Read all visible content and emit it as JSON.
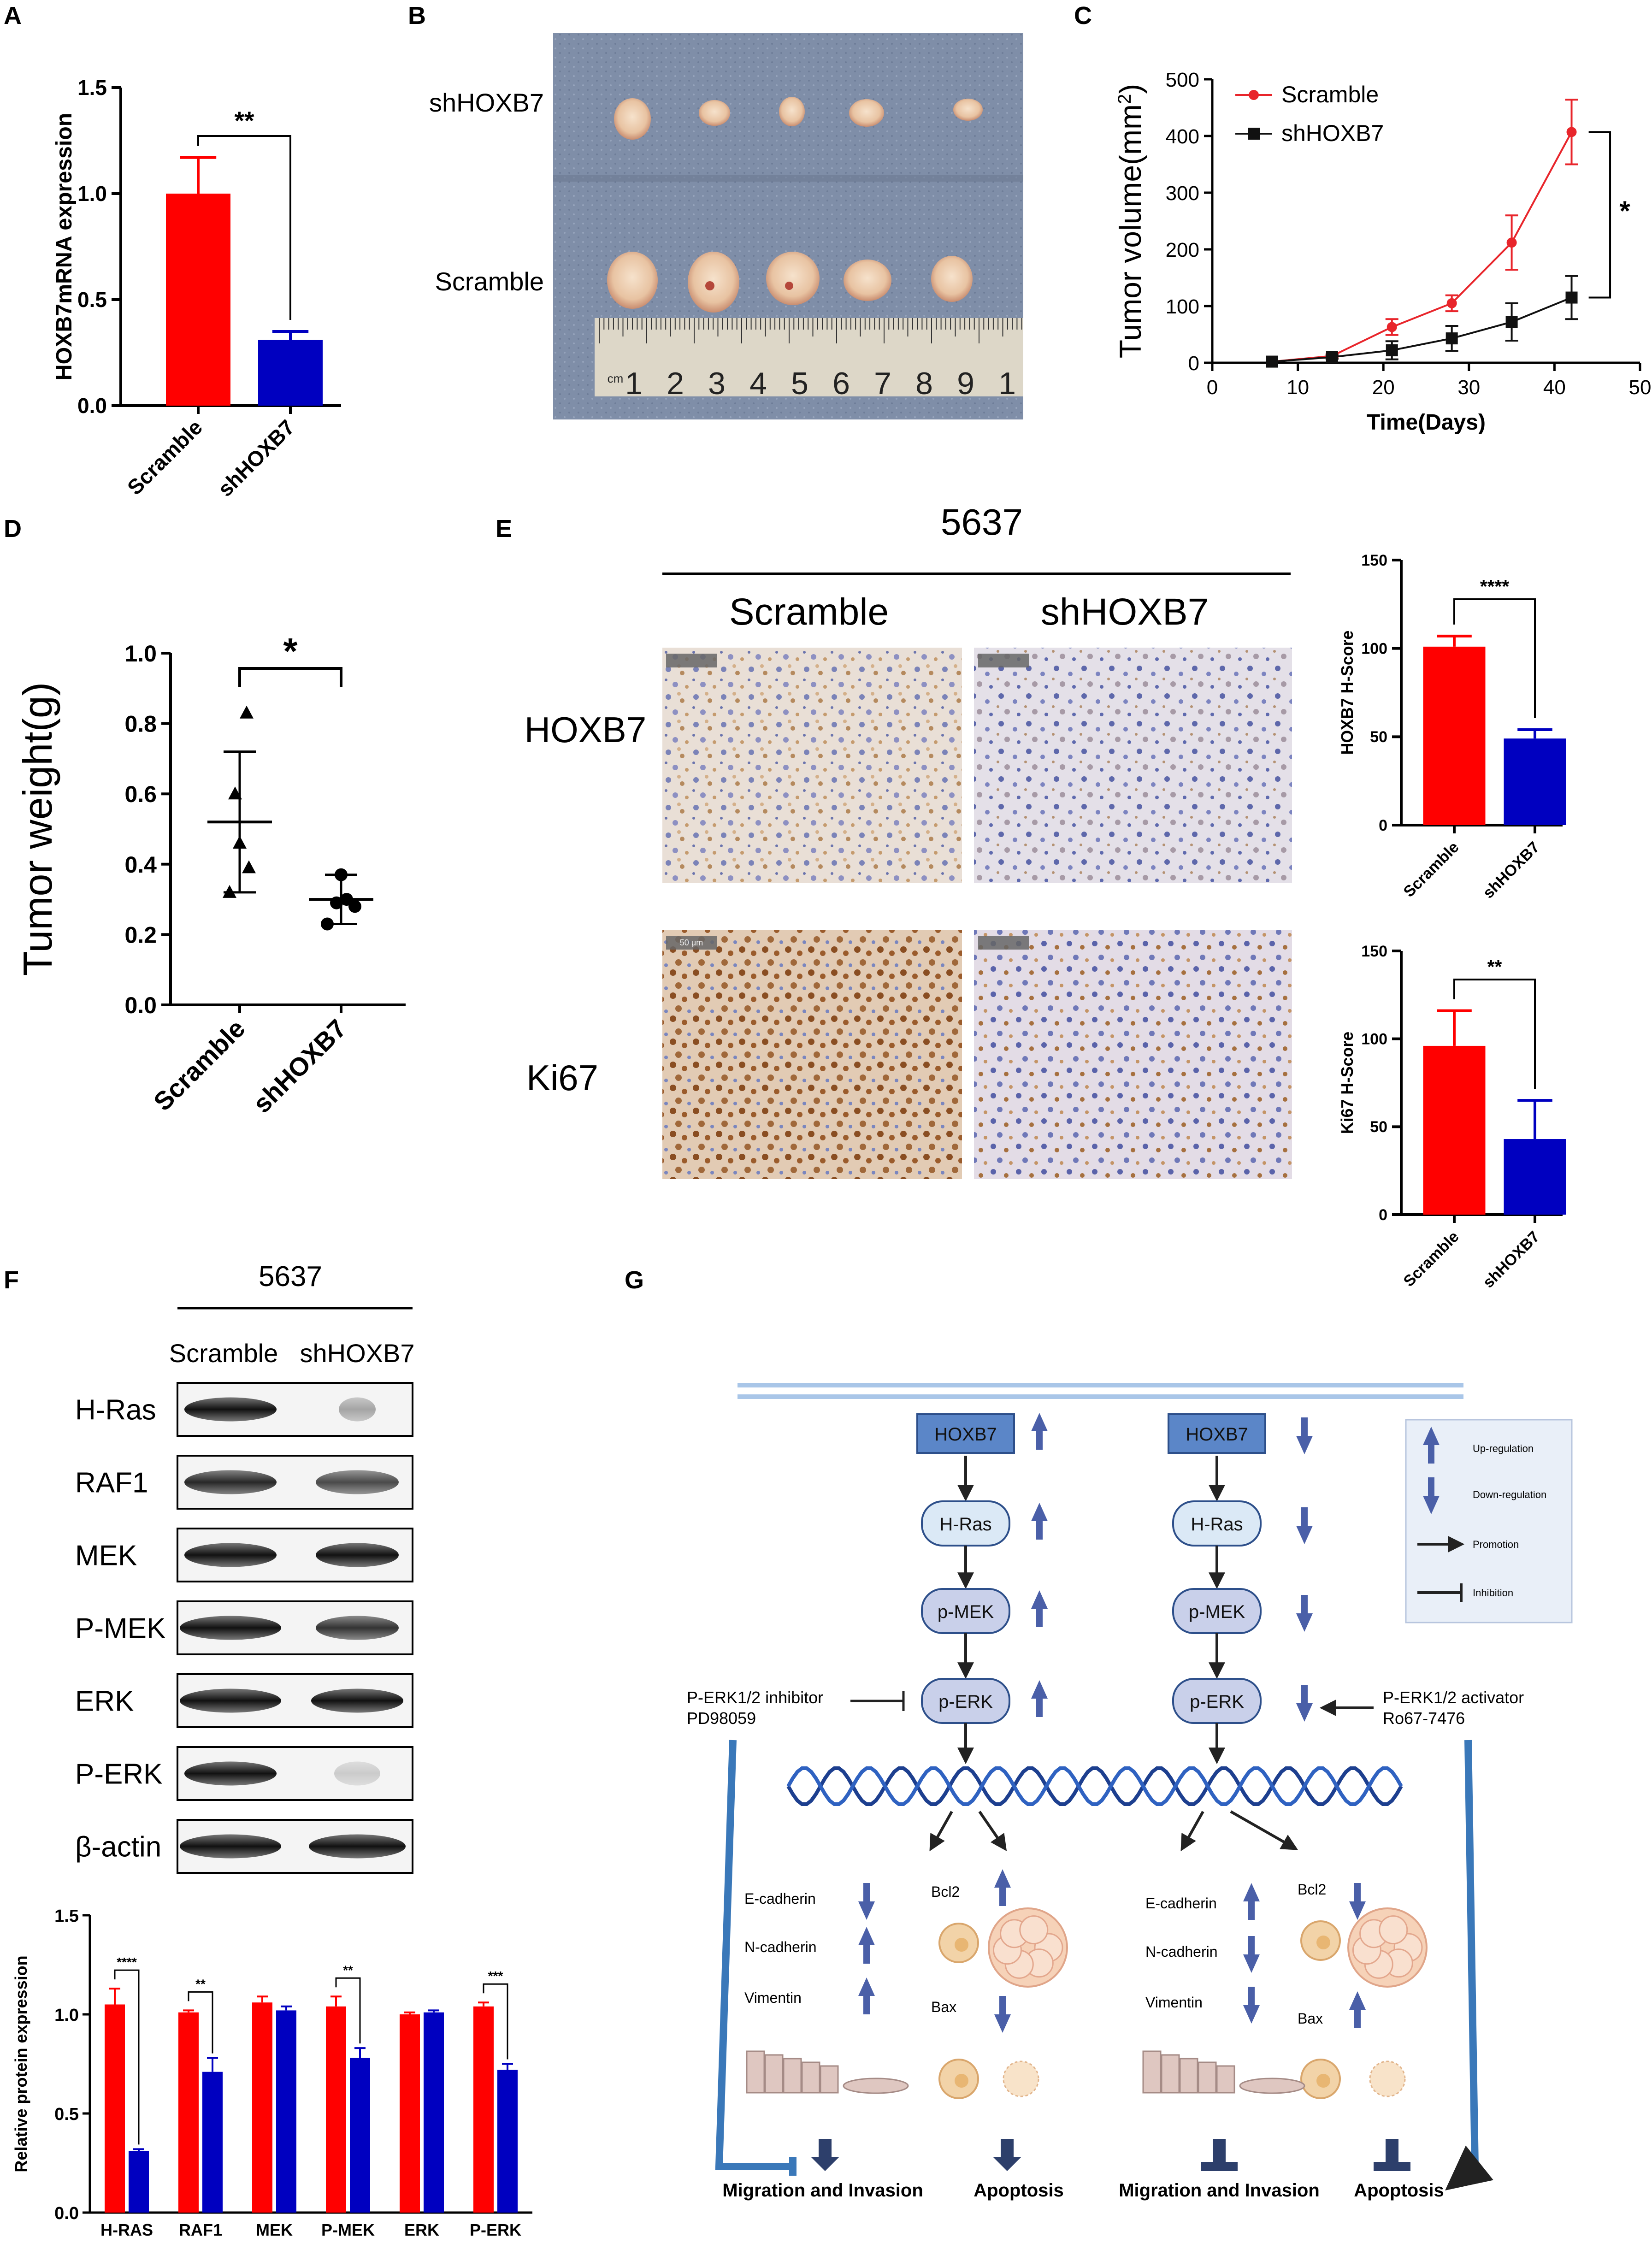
{
  "panels": {
    "A": "A",
    "B": "B",
    "C": "C",
    "D": "D",
    "E": "E",
    "F": "F",
    "G": "G"
  },
  "colors": {
    "scramble": "#ff0000",
    "shHOXB7": "#0000c0",
    "line_red": "#e8252b",
    "line_black": "#111111"
  },
  "chart_data": [
    {
      "id": "A",
      "type": "bar",
      "ylabel": "HOXB7mRNA expression",
      "ylim": [
        0,
        1.5
      ],
      "yticks": [
        "0.0",
        "0.5",
        "1.0",
        "1.5"
      ],
      "categories": [
        "Scramble",
        "shHOXB7"
      ],
      "values": [
        1.0,
        0.31
      ],
      "errors": [
        0.17,
        0.04
      ],
      "significance": "**"
    },
    {
      "id": "C",
      "type": "line",
      "xlabel": "Time(Days)",
      "ylabel": "Tumor volume(mm",
      "ylabel_sup": "2",
      "ylabel_end": ")",
      "xlim": [
        0,
        50
      ],
      "ylim": [
        0,
        500
      ],
      "xticks": [
        "0",
        "10",
        "20",
        "30",
        "40",
        "50"
      ],
      "yticks": [
        "0",
        "100",
        "200",
        "300",
        "400",
        "500"
      ],
      "series": [
        {
          "name": "Scramble",
          "x": [
            7,
            14,
            21,
            28,
            35,
            42
          ],
          "y": [
            2,
            12,
            63,
            105,
            212,
            407
          ],
          "err": [
            0,
            3,
            14,
            14,
            48,
            57
          ]
        },
        {
          "name": "shHOXB7",
          "x": [
            7,
            14,
            21,
            28,
            35,
            42
          ],
          "y": [
            2,
            10,
            22,
            43,
            72,
            115
          ],
          "err": [
            0,
            3,
            16,
            22,
            33,
            38
          ]
        }
      ],
      "significance": "*"
    },
    {
      "id": "D",
      "type": "scatter",
      "ylabel": "Tumor weight(g)",
      "ylim": [
        0,
        1.0
      ],
      "yticks": [
        "0.0",
        "0.2",
        "0.4",
        "0.6",
        "0.8",
        "1.0"
      ],
      "categories": [
        "Scramble",
        "shHOXB7"
      ],
      "points": [
        [
          0.32,
          0.39,
          0.46,
          0.6,
          0.83
        ],
        [
          0.23,
          0.28,
          0.29,
          0.3,
          0.37
        ]
      ],
      "means": [
        0.52,
        0.3
      ],
      "sd": [
        0.2,
        0.07
      ],
      "significance": "*"
    },
    {
      "id": "E1",
      "type": "bar",
      "ylabel": "HOXB7 H-Score",
      "ylim": [
        0,
        150
      ],
      "yticks": [
        "0",
        "50",
        "100",
        "150"
      ],
      "categories": [
        "Scramble",
        "shHOXB7"
      ],
      "values": [
        101,
        49
      ],
      "errors": [
        6,
        5
      ],
      "significance": "****"
    },
    {
      "id": "E2",
      "type": "bar",
      "ylabel": "Ki67  H-Score",
      "ylim": [
        0,
        150
      ],
      "yticks": [
        "0",
        "50",
        "100",
        "150"
      ],
      "categories": [
        "Scramble",
        "shHOXB7"
      ],
      "values": [
        96,
        43
      ],
      "errors": [
        20,
        22
      ],
      "significance": "**"
    },
    {
      "id": "F",
      "type": "bar",
      "ylabel": "Relative protein expression",
      "ylim": [
        0,
        1.5
      ],
      "yticks": [
        "0.0",
        "0.5",
        "1.0",
        "1.5"
      ],
      "categories": [
        "H-RAS",
        "RAF1",
        "MEK",
        "P-MEK",
        "ERK",
        "P-ERK"
      ],
      "series": [
        {
          "name": "Scramble",
          "values": [
            1.05,
            1.01,
            1.06,
            1.04,
            1.0,
            1.04
          ],
          "errors": [
            0.08,
            0.01,
            0.03,
            0.05,
            0.01,
            0.02
          ]
        },
        {
          "name": "shHOXB7",
          "values": [
            0.31,
            0.71,
            1.02,
            0.78,
            1.01,
            0.72
          ],
          "errors": [
            0.01,
            0.07,
            0.02,
            0.05,
            0.01,
            0.03
          ]
        }
      ],
      "significance": [
        "****",
        "**",
        "",
        "**",
        "",
        "***"
      ]
    }
  ],
  "panelB": {
    "row1": "shHOXB7",
    "row2": "Scramble",
    "ruler": [
      "cm",
      "1",
      "2",
      "3",
      "4",
      "5",
      "6",
      "7",
      "8",
      "9",
      "1"
    ]
  },
  "panelE": {
    "cell_line": "5637",
    "col1": "Scramble",
    "col2": "shHOXB7",
    "row1": "HOXB7",
    "row2": "Ki67",
    "scale": "50 μm"
  },
  "panelF": {
    "cell_line": "5637",
    "col1": "Scramble",
    "col2": "shHOXB7",
    "rows": [
      "H-Ras",
      "RAF1",
      "MEK",
      "P-MEK",
      "ERK",
      "P-ERK",
      "β-actin"
    ]
  },
  "panelG": {
    "left": [
      "HOXB7",
      "H-Ras",
      "p-MEK",
      "p-ERK"
    ],
    "right": [
      "HOXB7",
      "H-Ras",
      "p-MEK",
      "p-ERK"
    ],
    "inhibitor": [
      "P-ERK1/2 inhibitor",
      "PD98059"
    ],
    "activator": [
      "P-ERK1/2 activator",
      "Ro67-7476"
    ],
    "legend": [
      "Up-regulation",
      "Down-regulation",
      "Promotion",
      "Inhibition"
    ],
    "markers": [
      "E-cadherin",
      "N-cadherin",
      "Vimentin"
    ],
    "apoptosis_markers": [
      "Bcl2",
      "Bax"
    ],
    "outcomes": [
      "Migration and Invasion",
      "Apoptosis",
      "Migration and Invasion",
      "Apoptosis"
    ]
  }
}
